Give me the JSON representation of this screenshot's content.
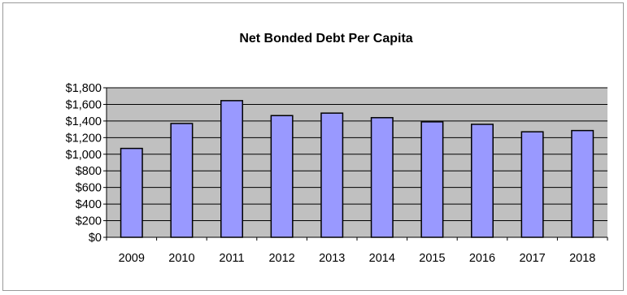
{
  "chart_data": {
    "type": "bar",
    "title": "Net Bonded Debt Per Capita",
    "xlabel": "",
    "ylabel": "",
    "categories": [
      "2009",
      "2010",
      "2011",
      "2012",
      "2013",
      "2014",
      "2015",
      "2016",
      "2017",
      "2018"
    ],
    "values": [
      1070,
      1370,
      1645,
      1465,
      1495,
      1440,
      1390,
      1360,
      1270,
      1285
    ],
    "ylim": [
      0,
      1800
    ],
    "yticks": [
      0,
      200,
      400,
      600,
      800,
      1000,
      1200,
      1400,
      1600,
      1800
    ],
    "ytick_labels": [
      "$0",
      "$200",
      "$400",
      "$600",
      "$800",
      "$1,000",
      "$1,200",
      "$1,400",
      "$1,600",
      "$1,800"
    ],
    "grid": true,
    "legend": "none",
    "colors": {
      "bar_fill": "#9999ff",
      "bar_stroke": "#000000",
      "plot_background": "#c0c0c0",
      "gridline": "#000000"
    }
  }
}
